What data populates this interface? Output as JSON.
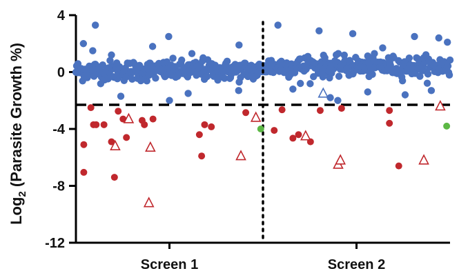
{
  "chart_data": {
    "type": "scatter",
    "title": "",
    "xlabel": "",
    "ylabel_main": "Log",
    "ylabel_sub": "2",
    "ylabel_rest": " (Parasite Growth %)",
    "ylim": [
      -12,
      4
    ],
    "yticks": [
      "4",
      "0",
      "-4",
      "-8",
      "-12"
    ],
    "ytick_values": [
      4,
      0,
      -4,
      -8,
      -12
    ],
    "categories": [
      "Screen 1",
      "Screen 2"
    ],
    "xlim": [
      0,
      1
    ],
    "threshold_y": -2.3,
    "divider_x": 0.5,
    "colors": {
      "bulk": "#4a72bf",
      "hit": "#c0282d",
      "hit_triangle": "#c0282d",
      "control": "#5cb845",
      "outline_triangle_blue": "#4a72bf"
    },
    "series": [
      {
        "name": "",
        "marker": "circle",
        "color": "#c0282d",
        "points": [
          [
            0.021,
            -5.1
          ],
          [
            0.021,
            -7.05
          ],
          [
            0.04,
            -2.5
          ],
          [
            0.054,
            -3.7
          ],
          [
            0.047,
            -3.7
          ],
          [
            0.075,
            -3.7
          ],
          [
            0.095,
            -4.9
          ],
          [
            0.103,
            -7.4
          ],
          [
            0.113,
            -2.75
          ],
          [
            0.126,
            -3.3
          ],
          [
            0.135,
            -4.6
          ],
          [
            0.177,
            -3.4
          ],
          [
            0.183,
            -3.7
          ],
          [
            0.206,
            -3.3
          ],
          [
            0.33,
            -4.4
          ],
          [
            0.336,
            -5.9
          ],
          [
            0.344,
            -3.7
          ],
          [
            0.362,
            -3.85
          ],
          [
            0.454,
            -2.85
          ],
          [
            0.53,
            -4.1
          ],
          [
            0.551,
            -2.65
          ],
          [
            0.58,
            -4.65
          ],
          [
            0.595,
            -4.4
          ],
          [
            0.627,
            -4.9
          ],
          [
            0.653,
            -2.7
          ],
          [
            0.71,
            -2.55
          ],
          [
            0.838,
            -2.7
          ],
          [
            0.838,
            -3.6
          ],
          [
            0.863,
            -6.6
          ]
        ]
      },
      {
        "name": "",
        "marker": "triangle",
        "color": "#c0282d",
        "points": [
          [
            0.141,
            -3.3
          ],
          [
            0.105,
            -5.2
          ],
          [
            0.199,
            -5.3
          ],
          [
            0.195,
            -9.2
          ],
          [
            0.441,
            -5.9
          ],
          [
            0.481,
            -3.2
          ],
          [
            0.614,
            -4.5
          ],
          [
            0.701,
            -6.5
          ],
          [
            0.707,
            -6.2
          ],
          [
            0.93,
            -6.2
          ],
          [
            0.974,
            -2.4
          ]
        ]
      },
      {
        "name": "",
        "marker": "circle",
        "color": "#5cb845",
        "points": [
          [
            0.494,
            -4.0
          ],
          [
            0.991,
            -3.8
          ]
        ]
      },
      {
        "name": "",
        "marker": "triangle-open",
        "color": "#4a72bf",
        "points": [
          [
            0.661,
            -1.5
          ]
        ]
      }
    ],
    "bulk_series": {
      "name": "",
      "marker": "circle",
      "color": "#4a72bf",
      "count": 560,
      "y_center_screen1": 0.1,
      "y_center_screen2": 0.4,
      "y_spread": 0.35,
      "outliers": [
        [
          0.02,
          2.0
        ],
        [
          0.045,
          1.5
        ],
        [
          0.095,
          1.2
        ],
        [
          0.205,
          1.8
        ],
        [
          0.248,
          2.5
        ],
        [
          0.31,
          1.3
        ],
        [
          0.34,
          1.0
        ],
        [
          0.436,
          1.9
        ],
        [
          0.435,
          -1.3
        ],
        [
          0.12,
          -1.7
        ],
        [
          0.25,
          -2.0
        ],
        [
          0.3,
          -1.5
        ],
        [
          0.052,
          3.3
        ],
        [
          0.54,
          3.3
        ],
        [
          0.65,
          2.9
        ],
        [
          0.74,
          2.7
        ],
        [
          0.905,
          2.5
        ],
        [
          0.97,
          2.4
        ],
        [
          0.993,
          2.1
        ],
        [
          0.62,
          1.1
        ],
        [
          0.82,
          1.7
        ],
        [
          0.58,
          -1.2
        ],
        [
          0.68,
          -1.8
        ],
        [
          0.78,
          -1.4
        ],
        [
          0.88,
          -1.6
        ],
        [
          0.95,
          -1.3
        ],
        [
          0.7,
          -2.0
        ],
        [
          0.6,
          -0.8
        ]
      ]
    }
  }
}
